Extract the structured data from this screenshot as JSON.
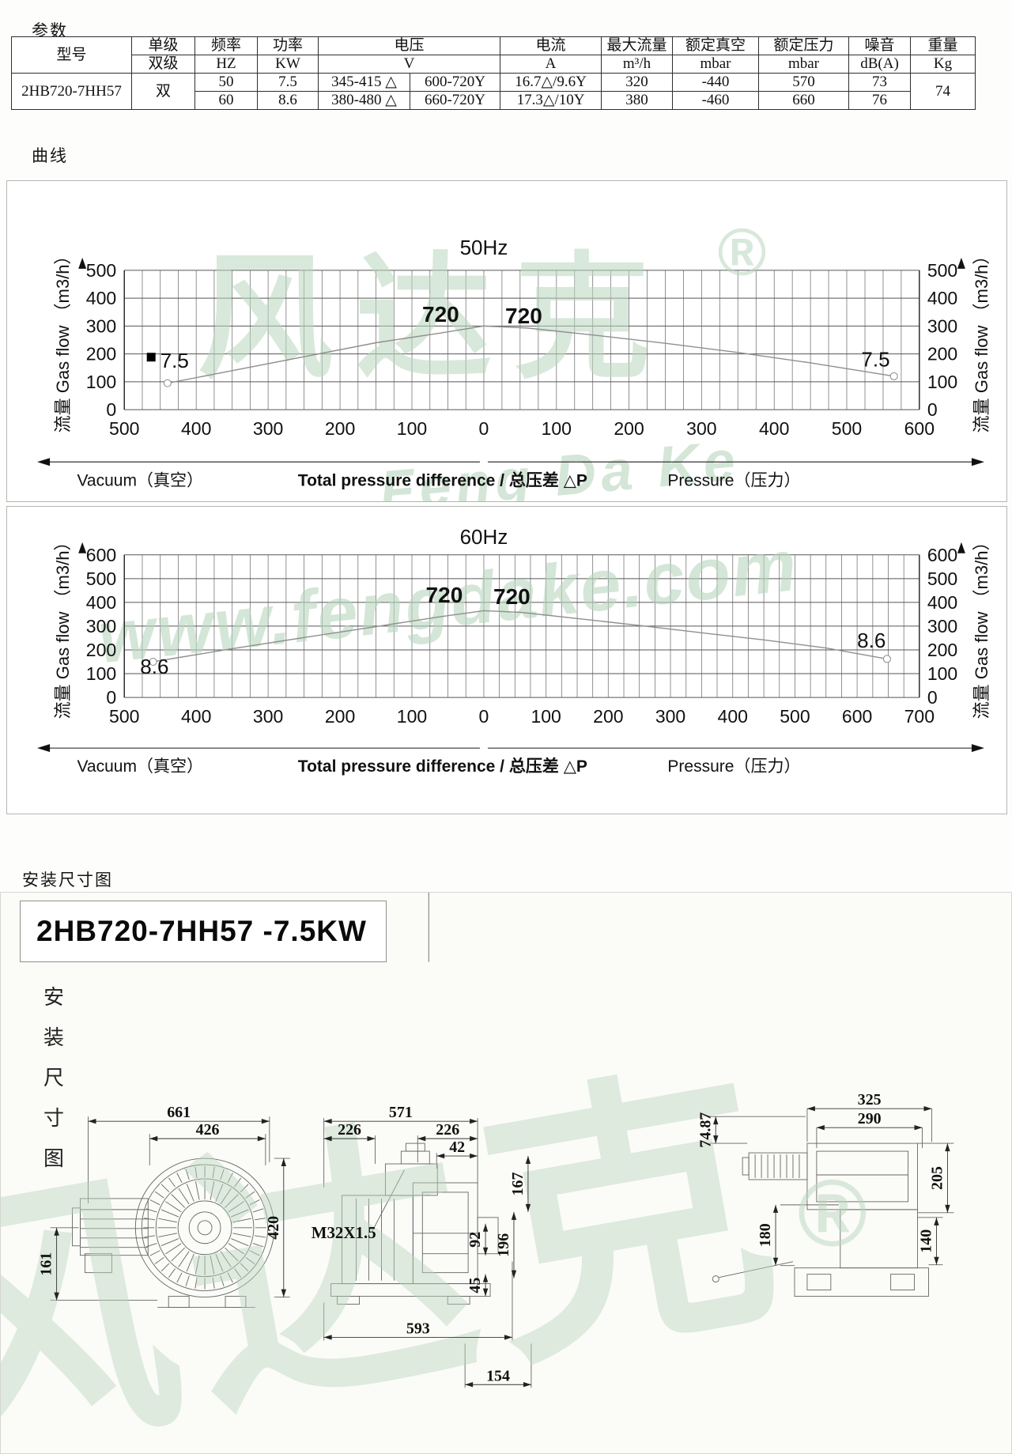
{
  "page": {
    "params_heading": "参数",
    "curves_heading": "曲线",
    "install_heading": "安装尺寸图"
  },
  "params_table": {
    "col_headers": {
      "model": "型号",
      "stage_row1": "单级",
      "stage_row2": "双级",
      "freq_name": "频率",
      "freq_unit": "HZ",
      "power_name": "功率",
      "power_unit": "KW",
      "voltage_name": "电压",
      "voltage_unit": "V",
      "current_name": "电流",
      "current_unit": "A",
      "max_flow_name": "最大流量",
      "max_flow_unit": "m³/h",
      "rated_vacuum_name": "额定真空",
      "rated_vacuum_unit": "mbar",
      "rated_pressure_name": "额定压力",
      "rated_pressure_unit": "mbar",
      "noise_name": "噪音",
      "noise_unit": "dB(A)",
      "weight_name": "重量",
      "weight_unit": "Kg"
    },
    "model_value": "2HB720-7HH57",
    "stage_value": "双",
    "rows": [
      {
        "freq": "50",
        "power": "7.5",
        "voltage_delta": "345-415 △",
        "voltage_y": "600-720Y",
        "current": "16.7△/9.6Y",
        "max_flow": "320",
        "rated_vacuum": "-440",
        "rated_pressure": "570",
        "noise": "73"
      },
      {
        "freq": "60",
        "power": "8.6",
        "voltage_delta": "380-480 △",
        "voltage_y": "660-720Y",
        "current": "17.3△/10Y",
        "max_flow": "380",
        "rated_vacuum": "-460",
        "rated_pressure": "660",
        "noise": "76"
      }
    ],
    "weight_value": "74"
  },
  "chart_data": [
    {
      "type": "line",
      "title": "50Hz",
      "ylabel": "流量 Gas flow （m3/h）",
      "xlabel_left": "Vacuum（真空）",
      "xlabel_center": "Total pressure difference / 总压差  △P",
      "xlabel_right": "Pressure（压力）",
      "x_unit": "mbar",
      "x_left_max": 500,
      "x_right_max": 600,
      "x_grid_step": 25,
      "ylim": [
        0,
        500
      ],
      "y_ticks": [
        {
          "v": 0,
          "label": "0"
        },
        {
          "v": 100,
          "label": "100"
        },
        {
          "v": 200,
          "label": "200"
        },
        {
          "v": 300,
          "label": "300"
        },
        {
          "v": 400,
          "label": "400"
        },
        {
          "v": 500,
          "label": "500"
        }
      ],
      "x_ticks": [
        {
          "v": -500,
          "label": "500"
        },
        {
          "v": -400,
          "label": "400"
        },
        {
          "v": -300,
          "label": "300"
        },
        {
          "v": -200,
          "label": "200"
        },
        {
          "v": -100,
          "label": "100"
        },
        {
          "v": 0,
          "label": "0"
        },
        {
          "v": 100,
          "label": "100"
        },
        {
          "v": 200,
          "label": "200"
        },
        {
          "v": 300,
          "label": "300"
        },
        {
          "v": 400,
          "label": "400"
        },
        {
          "v": 500,
          "label": "500"
        },
        {
          "v": 600,
          "label": "600"
        }
      ],
      "series": [
        {
          "name": "720",
          "points": [
            [
              -440,
              95
            ],
            [
              -350,
              140
            ],
            [
              -250,
              190
            ],
            [
              -150,
              240
            ],
            [
              -60,
              275
            ],
            [
              0,
              300
            ],
            [
              60,
              293
            ],
            [
              150,
              268
            ],
            [
              250,
              238
            ],
            [
              350,
              205
            ],
            [
              450,
              168
            ],
            [
              565,
              120
            ]
          ]
        }
      ],
      "endpoints": [
        [
          -440,
          95
        ],
        [
          565,
          120
        ]
      ],
      "annotations": [
        {
          "text": "7.5",
          "x": -450,
          "y": 150,
          "anchor": "start",
          "marker": "square"
        },
        {
          "text": "720",
          "x": -60,
          "y": 315,
          "anchor": "middle",
          "bold": true
        },
        {
          "text": "720",
          "x": 55,
          "y": 310,
          "anchor": "middle",
          "bold": true
        },
        {
          "text": "7.5",
          "x": 520,
          "y": 155,
          "anchor": "start"
        }
      ]
    },
    {
      "type": "line",
      "title": "60Hz",
      "ylabel": "流量 Gas flow （m3/h）",
      "xlabel_left": "Vacuum（真空）",
      "xlabel_center": "Total pressure difference / 总压差  △P",
      "xlabel_right": "Pressure（压力）",
      "x_unit": "mbar",
      "x_left_max": 500,
      "x_right_max": 700,
      "x_grid_step": 25,
      "ylim": [
        0,
        600
      ],
      "y_ticks": [
        {
          "v": 0,
          "label": "0"
        },
        {
          "v": 100,
          "label": "100"
        },
        {
          "v": 200,
          "label": "200"
        },
        {
          "v": 300,
          "label": "300"
        },
        {
          "v": 400,
          "label": "400"
        },
        {
          "v": 500,
          "label": "500"
        },
        {
          "v": 600,
          "label": "600"
        }
      ],
      "x_ticks": [
        {
          "v": -500,
          "label": "500"
        },
        {
          "v": -400,
          "label": "400"
        },
        {
          "v": -300,
          "label": "300"
        },
        {
          "v": -200,
          "label": "200"
        },
        {
          "v": -100,
          "label": "100"
        },
        {
          "v": 0,
          "label": "0"
        },
        {
          "v": 100,
          "label": "100"
        },
        {
          "v": 200,
          "label": "200"
        },
        {
          "v": 300,
          "label": "300"
        },
        {
          "v": 400,
          "label": "400"
        },
        {
          "v": 500,
          "label": "500"
        },
        {
          "v": 600,
          "label": "600"
        },
        {
          "v": 700,
          "label": "700"
        }
      ],
      "series": [
        {
          "name": "720",
          "points": [
            [
              -460,
              150
            ],
            [
              -350,
              205
            ],
            [
              -250,
              252
            ],
            [
              -150,
              298
            ],
            [
              -60,
              340
            ],
            [
              0,
              365
            ],
            [
              60,
              358
            ],
            [
              150,
              332
            ],
            [
              250,
              303
            ],
            [
              350,
              272
            ],
            [
              450,
              242
            ],
            [
              550,
              208
            ],
            [
              648,
              162
            ]
          ]
        }
      ],
      "endpoints": [
        [
          -460,
          150
        ],
        [
          648,
          162
        ]
      ],
      "annotations": [
        {
          "text": "8.6",
          "x": -478,
          "y": 100,
          "anchor": "start"
        },
        {
          "text": "720",
          "x": -55,
          "y": 400,
          "anchor": "middle",
          "bold": true
        },
        {
          "text": "720",
          "x": 45,
          "y": 393,
          "anchor": "middle",
          "bold": true
        },
        {
          "text": "8.6",
          "x": 600,
          "y": 210,
          "anchor": "start"
        }
      ]
    }
  ],
  "install": {
    "title": "2HB720-7HH57 -7.5KW",
    "side_label_chars": [
      "安",
      "装",
      "尺",
      "寸",
      "图"
    ],
    "front_view": {
      "overall_width": "661",
      "housing_width": "426",
      "height": "420",
      "port_height": "161"
    },
    "side_view": {
      "overall_length": "571",
      "left_section": "226",
      "right_section": "226",
      "gland_offset": "42",
      "cable_gland": "M32X1.5",
      "height_1": "167",
      "height_2": "92",
      "height_3": "196",
      "height_4": "45",
      "base_length": "593",
      "foot_pitch": "154"
    },
    "end_view": {
      "width_1": "325",
      "width_2": "290",
      "top_offset": "74.87",
      "height_1": "205",
      "height_2": "140",
      "height_3": "180"
    }
  },
  "watermarks": {
    "brand_cn": "风达克",
    "brand_reg": "®",
    "brand_en": "Feng Da Ke",
    "website": "www.fengdake.com",
    "color": "#b9d6be"
  }
}
